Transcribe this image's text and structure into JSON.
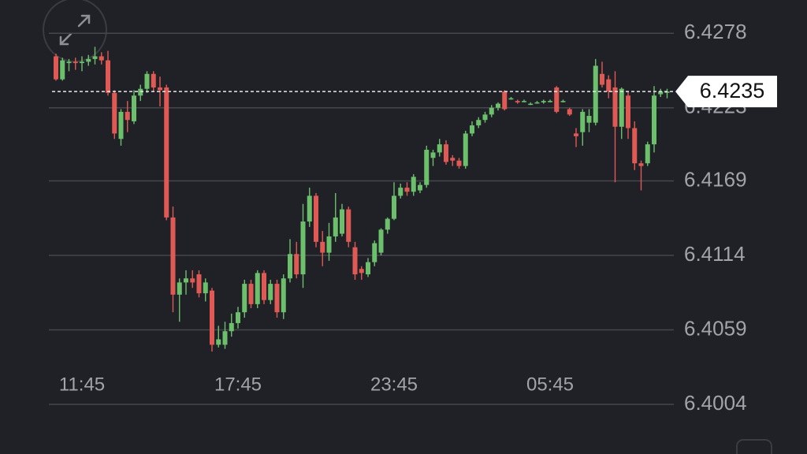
{
  "chart_data": {
    "type": "candlestick",
    "categories": [
      null,
      null,
      null,
      null,
      "11:45",
      null,
      null,
      null,
      null,
      null,
      null,
      null,
      null,
      null,
      null,
      null,
      null,
      null,
      null,
      null,
      null,
      null,
      null,
      null,
      null,
      null,
      null,
      null,
      "17:45",
      null,
      null,
      null,
      null,
      null,
      null,
      null,
      null,
      null,
      null,
      null,
      null,
      null,
      null,
      null,
      null,
      null,
      null,
      null,
      null,
      null,
      null,
      null,
      "23:45",
      null,
      null,
      null,
      null,
      null,
      null,
      null,
      null,
      null,
      null,
      null,
      null,
      null,
      null,
      null,
      null,
      null,
      null,
      null,
      null,
      null,
      null,
      null,
      "05:45",
      null,
      null,
      null,
      null,
      null,
      null,
      null,
      null,
      null,
      null,
      null,
      null,
      null,
      null,
      null,
      null,
      null,
      null
    ],
    "open": [
      6.4261,
      6.4244,
      6.4256,
      6.4257,
      6.4256,
      6.4257,
      6.4259,
      6.4261,
      6.4258,
      6.4234,
      6.42,
      6.422,
      6.4213,
      6.4232,
      6.4237,
      6.4248,
      6.4238,
      6.4238,
      6.4142,
      6.4085,
      6.4094,
      6.4097,
      6.41,
      6.4086,
      6.4088,
      6.4048,
      6.4048,
      6.4058,
      6.4064,
      6.4072,
      6.4093,
      6.4078,
      6.4101,
      6.4081,
      6.4093,
      6.4072,
      6.4097,
      6.4115,
      6.41,
      6.4139,
      6.4158,
      6.4124,
      6.4116,
      6.4128,
      6.413,
      6.4148,
      6.412,
      6.4104,
      6.41,
      6.4109,
      6.4116,
      6.4133,
      6.4141,
      6.4158,
      6.4164,
      6.4161,
      6.4162,
      6.4166,
      6.4186,
      6.419,
      6.4196,
      6.4186,
      6.4184,
      6.418,
      6.4204,
      6.421,
      6.4214,
      6.4218,
      6.4223,
      6.4235,
      6.423,
      6.4228,
      6.4228,
      6.4226,
      6.4227,
      6.4227,
      6.4228,
      6.4238,
      6.4228,
      6.4222,
      6.4204,
      6.4205,
      6.4212,
      6.4212,
      6.4248,
      6.4244,
      6.4238,
      6.4209,
      6.4232,
      6.4208,
      6.4182,
      6.4182,
      6.4196,
      6.4233,
      6.4234
    ],
    "high": [
      6.4263,
      6.426,
      6.4259,
      6.426,
      6.4261,
      6.4262,
      6.4268,
      6.4264,
      6.4265,
      6.4236,
      6.4222,
      6.4228,
      6.4236,
      6.424,
      6.425,
      6.425,
      6.4246,
      6.424,
      6.415,
      6.4097,
      6.4103,
      6.4103,
      6.4103,
      6.4097,
      6.409,
      6.4062,
      6.4065,
      6.4071,
      6.4076,
      6.4096,
      6.4096,
      6.4103,
      6.4103,
      6.4096,
      6.4096,
      6.41,
      6.4126,
      6.4124,
      6.4152,
      6.4164,
      6.416,
      6.4132,
      6.4138,
      6.416,
      6.4152,
      6.415,
      6.4124,
      6.4106,
      6.4112,
      6.4125,
      6.4134,
      6.4142,
      6.4168,
      6.4167,
      6.4168,
      6.4174,
      6.4168,
      6.4195,
      6.4192,
      6.42,
      6.4199,
      6.4188,
      6.4186,
      6.4206,
      6.4213,
      6.4216,
      6.422,
      6.4225,
      6.4227,
      6.4236,
      6.4231,
      6.4229,
      6.4229,
      6.4227,
      6.4228,
      6.4229,
      6.4229,
      6.4239,
      6.4229,
      6.4223,
      6.4208,
      6.4222,
      6.4222,
      6.4259,
      6.4257,
      6.4247,
      6.425,
      6.4238,
      6.4235,
      6.4213,
      6.4184,
      6.4198,
      6.4239,
      6.4237,
      6.4237
    ],
    "low": [
      6.4243,
      6.4243,
      6.425,
      6.4251,
      6.425,
      6.4254,
      6.4255,
      6.4255,
      6.4232,
      6.42,
      6.4195,
      6.4205,
      6.4211,
      6.4228,
      6.4234,
      6.4235,
      6.4224,
      6.414,
      6.4072,
      6.4065,
      6.4085,
      6.409,
      6.4083,
      6.408,
      6.4043,
      6.4046,
      6.4045,
      6.4054,
      6.406,
      6.4068,
      6.4075,
      6.4075,
      6.4078,
      6.4078,
      6.4068,
      6.4067,
      6.4094,
      6.4097,
      6.409,
      6.4135,
      6.412,
      6.4106,
      6.411,
      6.4124,
      6.4128,
      6.412,
      6.4096,
      6.4096,
      6.4098,
      6.4106,
      6.4114,
      6.413,
      6.414,
      6.4156,
      6.4158,
      6.4158,
      6.416,
      6.4164,
      6.418,
      6.4187,
      6.4181,
      6.418,
      6.4178,
      6.4178,
      6.4202,
      6.4208,
      6.4212,
      6.4216,
      6.4221,
      6.4221,
      6.4229,
      6.4226,
      6.4227,
      6.4225,
      6.4226,
      6.4226,
      6.4227,
      6.4219,
      6.4227,
      6.4217,
      6.4194,
      6.4195,
      6.4205,
      6.421,
      6.4238,
      6.423,
      6.4168,
      6.42,
      6.42,
      6.4177,
      6.4162,
      6.418,
      6.419,
      6.4231,
      6.423
    ],
    "close": [
      6.4244,
      6.4258,
      6.4257,
      6.4256,
      6.4257,
      6.4259,
      6.4261,
      6.4258,
      6.4234,
      6.4204,
      6.422,
      6.4214,
      6.4232,
      6.4237,
      6.4248,
      6.4238,
      6.4236,
      6.4142,
      6.4085,
      6.4094,
      6.4097,
      6.4094,
      6.4086,
      6.4094,
      6.4048,
      6.4052,
      6.4058,
      6.4064,
      6.4072,
      6.4093,
      6.4078,
      6.4101,
      6.4081,
      6.4093,
      6.4072,
      6.4097,
      6.4115,
      6.41,
      6.4139,
      6.4158,
      6.4124,
      6.4116,
      6.4128,
      6.4142,
      6.4148,
      6.4124,
      6.41,
      6.4101,
      6.4109,
      6.4123,
      6.4133,
      6.4141,
      6.4158,
      6.4164,
      6.4161,
      6.4172,
      6.4166,
      6.4192,
      6.419,
      6.4196,
      6.4183,
      6.4184,
      6.418,
      6.4204,
      6.421,
      6.4214,
      6.4218,
      6.4223,
      6.4226,
      6.4222,
      6.423,
      6.4227,
      6.4228,
      6.4226,
      6.4227,
      6.4228,
      6.4228,
      6.422,
      6.4228,
      6.4218,
      6.4202,
      6.422,
      6.4217,
      6.4254,
      6.424,
      6.4235,
      6.4209,
      6.4237,
      6.4208,
      6.4182,
      6.418,
      6.4196,
      6.4232,
      6.4235,
      6.4235
    ],
    "up_color": "#6cc06c",
    "down_color": "#e05a55",
    "last_price": 6.4235,
    "ylim": [
      6.4004,
      6.4302
    ],
    "yticks": [
      6.4004,
      6.4059,
      6.4114,
      6.4169,
      6.4223,
      6.4278
    ],
    "grid": true
  }
}
